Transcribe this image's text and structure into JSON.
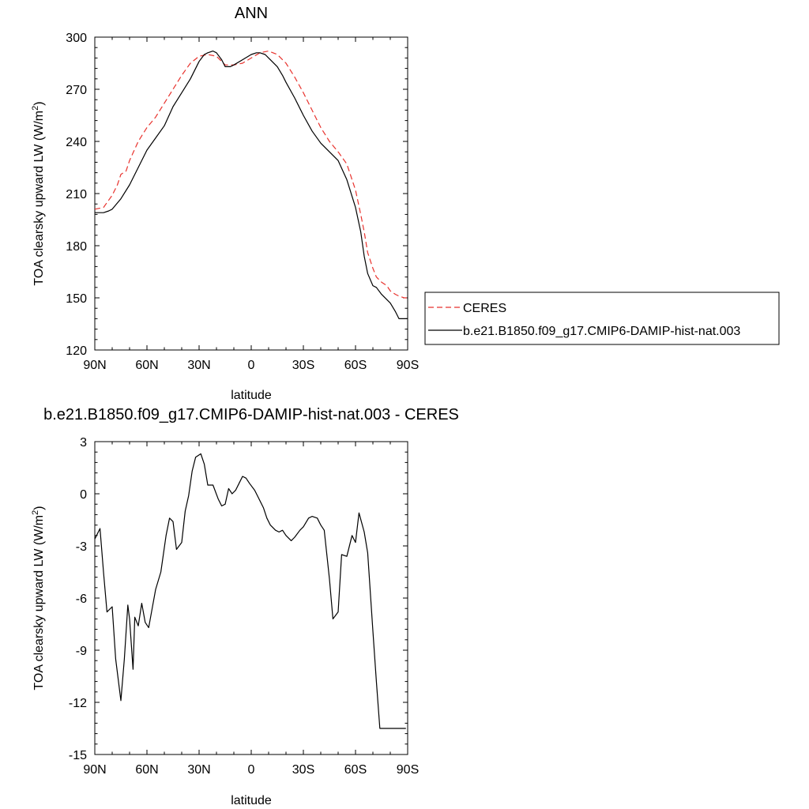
{
  "chart_data": [
    {
      "type": "line",
      "title": "ANN",
      "xlabel": "latitude",
      "ylabel": "TOA clearsky upward LW (W/m",
      "ylabel_sup": "2",
      "ylabel_end": ")",
      "xlim": [
        90,
        -90
      ],
      "ylim": [
        120,
        300
      ],
      "x_ticks": [
        90,
        60,
        30,
        0,
        -30,
        -60,
        -90
      ],
      "x_tick_labels": [
        "90N",
        "60N",
        "30N",
        "0",
        "30S",
        "60S",
        "90S"
      ],
      "y_ticks": [
        120,
        150,
        180,
        210,
        240,
        270,
        300
      ],
      "y_tick_labels": [
        "120",
        "150",
        "180",
        "210",
        "240",
        "270",
        "300"
      ],
      "legend": "right",
      "series": [
        {
          "name": "CERES",
          "color": "#e8322d",
          "dash": "dashed",
          "x": [
            90,
            85,
            80,
            77,
            75,
            72,
            70,
            65,
            60,
            55,
            50,
            45,
            40,
            35,
            30,
            25,
            20,
            15,
            10,
            5,
            0,
            -5,
            -10,
            -15,
            -20,
            -25,
            -30,
            -35,
            -40,
            -45,
            -50,
            -55,
            -60,
            -63,
            -65,
            -67,
            -70,
            -72,
            -75,
            -78,
            -80,
            -83,
            -85,
            -88,
            -90
          ],
          "y": [
            201,
            202,
            209,
            215,
            221,
            223,
            229,
            240,
            248,
            254,
            262,
            270,
            278,
            285,
            289,
            290,
            289,
            284,
            284,
            285,
            288,
            291,
            292,
            290,
            285,
            277,
            268,
            258,
            248,
            240,
            234,
            227,
            212,
            198,
            188,
            176,
            167,
            162,
            159,
            157,
            154,
            152,
            151,
            150,
            150
          ]
        },
        {
          "name": "b.e21.B1850.f09_g17.CMIP6-DAMIP-hist-nat.003",
          "color": "#000000",
          "dash": "solid",
          "x": [
            90,
            85,
            82,
            80,
            75,
            70,
            65,
            60,
            55,
            50,
            45,
            40,
            35,
            30,
            27,
            25,
            22,
            20,
            17,
            15,
            12,
            10,
            5,
            0,
            -3,
            -5,
            -8,
            -10,
            -12,
            -15,
            -18,
            -20,
            -25,
            -30,
            -35,
            -40,
            -45,
            -50,
            -55,
            -60,
            -63,
            -65,
            -67,
            -70,
            -72,
            -75,
            -78,
            -80,
            -83,
            -85,
            -88,
            -90
          ],
          "y": [
            199,
            199,
            200,
            201,
            207,
            215,
            225,
            235,
            242,
            249,
            260,
            268,
            276,
            286,
            290,
            291,
            292,
            291,
            287,
            283,
            283,
            284,
            287,
            290,
            291,
            291,
            290,
            288,
            286,
            283,
            278,
            274,
            265,
            255,
            246,
            239,
            234,
            229,
            218,
            202,
            188,
            174,
            164,
            157,
            156,
            152,
            149,
            147,
            142,
            138,
            138,
            138
          ]
        }
      ]
    },
    {
      "type": "line",
      "title": "b.e21.B1850.f09_g17.CMIP6-DAMIP-hist-nat.003 - CERES",
      "xlabel": "latitude",
      "ylabel": "TOA clearsky upward LW (W/m",
      "ylabel_sup": "2",
      "ylabel_end": ")",
      "xlim": [
        90,
        -90
      ],
      "ylim": [
        -15,
        3
      ],
      "x_ticks": [
        90,
        60,
        30,
        0,
        -30,
        -60,
        -90
      ],
      "x_tick_labels": [
        "90N",
        "60N",
        "30N",
        "0",
        "30S",
        "60S",
        "90S"
      ],
      "y_ticks": [
        -15,
        -12,
        -9,
        -6,
        -3,
        0,
        3
      ],
      "y_tick_labels": [
        "-15",
        "-12",
        "-9",
        "-6",
        "-3",
        "0",
        "3"
      ],
      "series": [
        {
          "name": "",
          "color": "#000000",
          "dash": "solid",
          "x": [
            90,
            87,
            85,
            83,
            80,
            78,
            75,
            73,
            71,
            70,
            68,
            67,
            65,
            63,
            61,
            59,
            57,
            55,
            52,
            49,
            47,
            45,
            43,
            40,
            38,
            36,
            34,
            32,
            29,
            27,
            25,
            22,
            19,
            17,
            15,
            13,
            11,
            9,
            7,
            5,
            3,
            1,
            -2,
            -4,
            -7,
            -9,
            -11,
            -14,
            -16,
            -18,
            -20,
            -23,
            -25,
            -28,
            -30,
            -33,
            -35,
            -38,
            -40,
            -42,
            -45,
            -47,
            -50,
            -52,
            -55,
            -58,
            -60,
            -62,
            -65,
            -67,
            -70,
            -72,
            -74,
            -75,
            -77,
            -79,
            -80,
            -81,
            -83,
            -85,
            -87,
            -89
          ],
          "y": [
            -2.6,
            -2.0,
            -4.5,
            -6.8,
            -6.5,
            -9.5,
            -11.9,
            -9.5,
            -6.4,
            -7.2,
            -10.1,
            -7.1,
            -7.6,
            -6.3,
            -7.4,
            -7.7,
            -6.6,
            -5.5,
            -4.5,
            -2.4,
            -1.4,
            -1.6,
            -3.2,
            -2.8,
            -1.0,
            -0.1,
            1.3,
            2.1,
            2.3,
            1.7,
            0.5,
            0.5,
            -0.3,
            -0.7,
            -0.6,
            0.3,
            0.0,
            0.2,
            0.6,
            1.0,
            0.9,
            0.6,
            0.2,
            -0.2,
            -0.8,
            -1.4,
            -1.8,
            -2.1,
            -2.2,
            -2.1,
            -2.4,
            -2.7,
            -2.5,
            -2.1,
            -1.9,
            -1.4,
            -1.3,
            -1.4,
            -1.8,
            -2.1,
            -4.9,
            -7.2,
            -6.8,
            -3.5,
            -3.6,
            -2.4,
            -2.8,
            -1.1,
            -2.2,
            -3.4,
            -7.9,
            -10.8,
            -13.5,
            -13.5,
            -13.5,
            -13.5,
            -13.5,
            -13.5,
            -13.5,
            -13.5,
            -13.5,
            -13.5
          ]
        }
      ]
    }
  ]
}
